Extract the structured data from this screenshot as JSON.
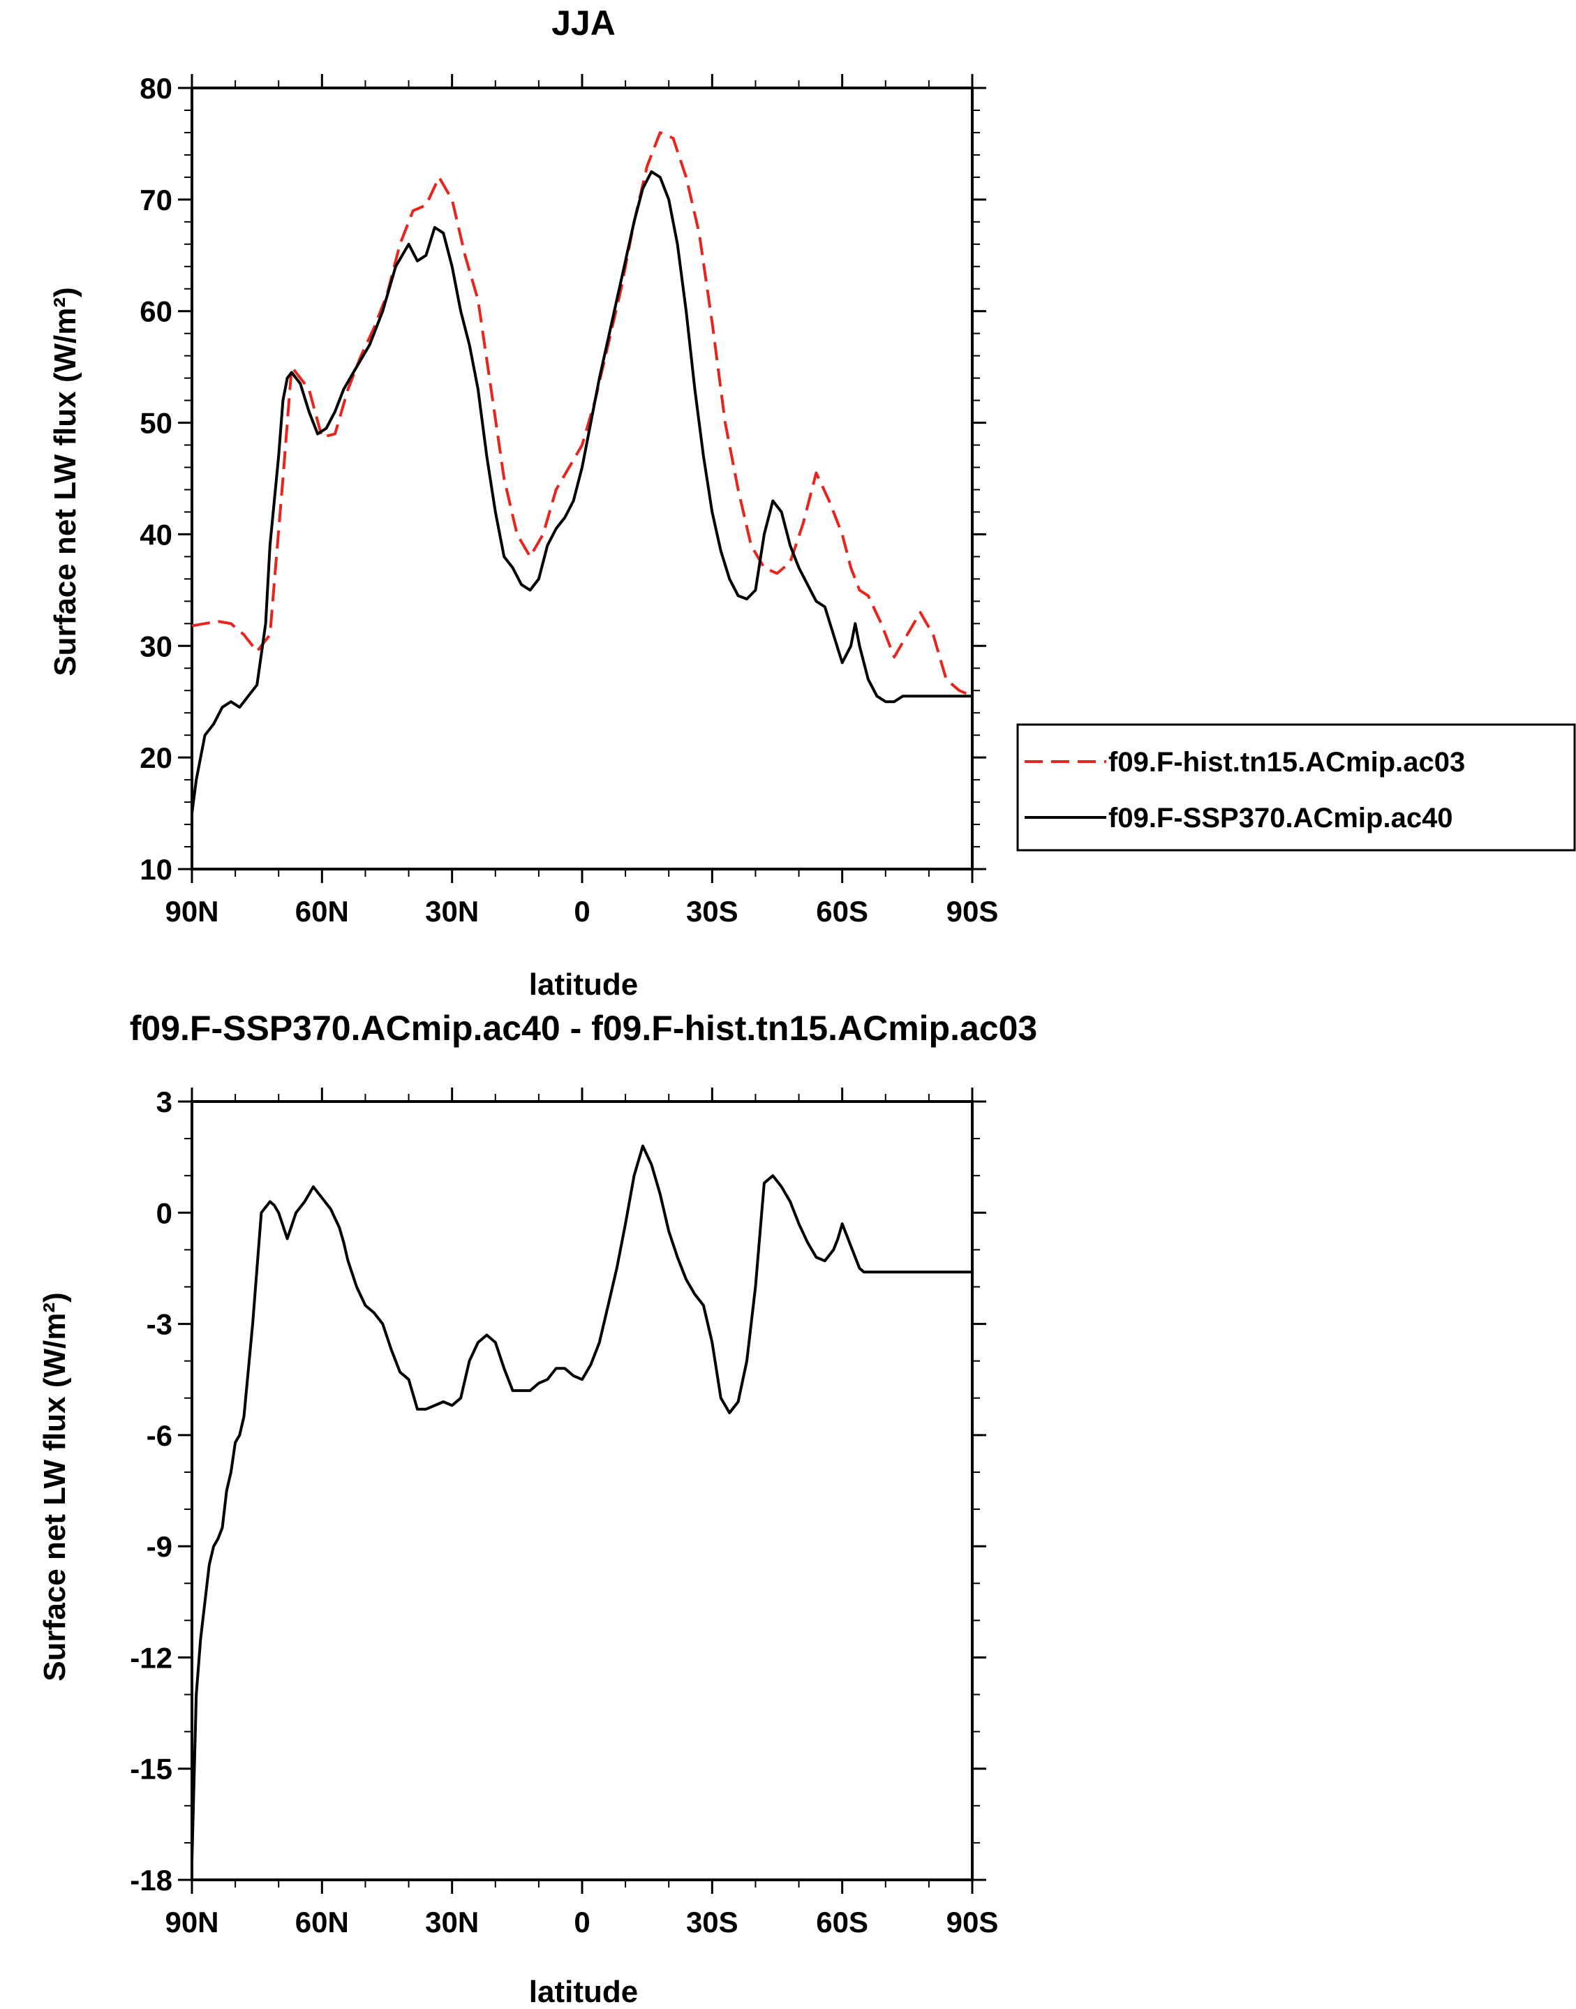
{
  "colors": {
    "series_hist": "#e8241c",
    "series_ssp": "#000000",
    "frame": "#000000"
  },
  "legend": {
    "entries": [
      {
        "label": "f09.F-hist.tn15.ACmip.ac03",
        "color": "#e8241c",
        "dash": true
      },
      {
        "label": "f09.F-SSP370.ACmip.ac40",
        "color": "#000000",
        "dash": false
      }
    ]
  },
  "chart_data": [
    {
      "type": "line",
      "title": "JJA",
      "xlabel": "latitude",
      "ylabel": "Surface net LW flux (W/m²)",
      "xlim": [
        90,
        -90
      ],
      "ylim": [
        10,
        80
      ],
      "xticks": [
        90,
        60,
        30,
        0,
        -30,
        -60,
        -90
      ],
      "xtick_labels": [
        "90N",
        "60N",
        "30N",
        "0",
        "30S",
        "60S",
        "90S"
      ],
      "yticks": [
        10,
        20,
        30,
        40,
        50,
        60,
        70,
        80
      ],
      "ytick_labels": [
        "10",
        "20",
        "30",
        "40",
        "50",
        "60",
        "70",
        "80"
      ],
      "legend": "right",
      "series": [
        {
          "name": "f09.F-hist.tn15.ACmip.ac03",
          "style": "dashed",
          "color": "#e8241c",
          "x": [
            90,
            87,
            84,
            81,
            78,
            75,
            72,
            69,
            67,
            65,
            63,
            60,
            57,
            54,
            51,
            48,
            45,
            42,
            39,
            36,
            33,
            30,
            27,
            24,
            21,
            18,
            15,
            12,
            9,
            6,
            3,
            0,
            -3,
            -6,
            -9,
            -12,
            -15,
            -18,
            -21,
            -24,
            -27,
            -30,
            -33,
            -36,
            -39,
            -42,
            -45,
            -48,
            -51,
            -54,
            -57,
            -60,
            -62,
            -63,
            -64,
            -66,
            -69,
            -72,
            -75,
            -78,
            -81,
            -84,
            -87,
            -90
          ],
          "y": [
            31.8,
            32,
            32.2,
            32,
            31,
            29.5,
            31,
            45,
            55,
            54,
            53,
            48.7,
            49,
            53,
            56,
            58.5,
            61.5,
            66,
            69,
            69.5,
            72,
            70,
            65,
            61,
            53,
            45,
            40,
            38,
            40,
            44,
            46,
            48,
            52,
            57,
            62,
            68,
            73,
            76,
            75.5,
            72,
            67,
            59,
            50,
            44,
            39,
            37,
            36.5,
            37.5,
            41,
            45.5,
            43,
            40,
            37,
            36,
            35,
            34.5,
            32,
            29,
            31,
            33,
            31,
            27,
            26,
            25.5
          ],
          "y_note": ""
        },
        {
          "name": "f09.F-SSP370.ACmip.ac40",
          "style": "solid",
          "color": "#000000",
          "x": [
            90,
            89,
            88,
            87,
            85,
            83,
            81,
            79,
            77,
            75,
            73,
            72,
            70,
            69,
            68,
            67,
            65,
            63,
            61,
            59,
            57,
            55,
            52,
            49,
            46,
            43,
            40,
            38,
            36,
            34,
            32,
            30,
            28,
            26,
            24,
            22,
            20,
            18,
            16,
            14,
            12,
            10,
            8,
            6,
            4,
            2,
            0,
            -2,
            -4,
            -6,
            -8,
            -10,
            -12,
            -14,
            -16,
            -18,
            -20,
            -22,
            -24,
            -26,
            -28,
            -30,
            -32,
            -34,
            -36,
            -38,
            -40,
            -42,
            -44,
            -46,
            -48,
            -50,
            -52,
            -54,
            -56,
            -58,
            -60,
            -62,
            -63,
            -64,
            -66,
            -68,
            -70,
            -72,
            -74,
            -76,
            -78,
            -80,
            -82,
            -84,
            -86,
            -88,
            -90
          ],
          "y": [
            15,
            18,
            20,
            22,
            23,
            24.5,
            25,
            24.5,
            25.5,
            26.5,
            32,
            39,
            47,
            52,
            54,
            54.5,
            53.5,
            51,
            49,
            49.5,
            51,
            53,
            55,
            57,
            60,
            64,
            66,
            64.5,
            65,
            67.5,
            67,
            64,
            60,
            57,
            53,
            47,
            42,
            38,
            37,
            35.5,
            35,
            36,
            39,
            40.5,
            41.5,
            43,
            46,
            50,
            54,
            57.5,
            61,
            64.5,
            68,
            71,
            72.5,
            72,
            70,
            66,
            60,
            53,
            47,
            42,
            38.5,
            36,
            34.5,
            34.2,
            35,
            40,
            43,
            42,
            39,
            37,
            35.5,
            34,
            33.5,
            31,
            28.5,
            30,
            32,
            30,
            27,
            25.5,
            25,
            25,
            25.5,
            25.5,
            25.5,
            25.5,
            25.5,
            25.5,
            25.5,
            25.5,
            25.5
          ],
          "y_note": ""
        }
      ]
    },
    {
      "type": "line",
      "title": "f09.F-SSP370.ACmip.ac40 - f09.F-hist.tn15.ACmip.ac03",
      "xlabel": "latitude",
      "ylabel": "Surface net LW flux (W/m²)",
      "xlim": [
        90,
        -90
      ],
      "ylim": [
        -18,
        3
      ],
      "xticks": [
        90,
        60,
        30,
        0,
        -30,
        -60,
        -90
      ],
      "xtick_labels": [
        "90N",
        "60N",
        "30N",
        "0",
        "30S",
        "60S",
        "90S"
      ],
      "yticks": [
        -18,
        -15,
        -12,
        -9,
        -6,
        -3,
        0,
        3
      ],
      "ytick_labels": [
        "-18",
        "-15",
        "-12",
        "-9",
        "-6",
        "-3",
        "0",
        "3"
      ],
      "legend": "none",
      "series": [
        {
          "color": "#000000",
          "style": "solid",
          "x": [
            90,
            89,
            88,
            87,
            86,
            85,
            84,
            83,
            82,
            81,
            80,
            79,
            78,
            76,
            74,
            72,
            71,
            70,
            68,
            66,
            64,
            62,
            60,
            58,
            56,
            55,
            54,
            52,
            50,
            48,
            46,
            44,
            42,
            40,
            38,
            36,
            34,
            32,
            30,
            28,
            26,
            24,
            22,
            20,
            18,
            16,
            14,
            12,
            10,
            8,
            6,
            4,
            2,
            0,
            -2,
            -4,
            -6,
            -8,
            -10,
            -12,
            -14,
            -16,
            -18,
            -20,
            -22,
            -24,
            -26,
            -28,
            -30,
            -32,
            -34,
            -36,
            -38,
            -40,
            -42,
            -44,
            -46,
            -48,
            -50,
            -52,
            -54,
            -56,
            -58,
            -59,
            -60,
            -61,
            -62,
            -63,
            -64,
            -65,
            -66,
            -67,
            -68,
            -70,
            -72,
            -74,
            -76,
            -78,
            -80,
            -82,
            -84,
            -86,
            -88,
            -90
          ],
          "y": [
            -17.5,
            -13,
            -11.5,
            -10.5,
            -9.5,
            -9,
            -8.8,
            -8.5,
            -7.5,
            -7,
            -6.2,
            -6,
            -5.5,
            -3,
            0,
            0.3,
            0.2,
            0,
            -0.7,
            0,
            0.3,
            0.7,
            0.4,
            0.1,
            -0.4,
            -0.8,
            -1.3,
            -2,
            -2.5,
            -2.7,
            -3,
            -3.7,
            -4.3,
            -4.5,
            -5.3,
            -5.3,
            -5.2,
            -5.1,
            -5.2,
            -5,
            -4,
            -3.5,
            -3.3,
            -3.5,
            -4.2,
            -4.8,
            -4.8,
            -4.8,
            -4.6,
            -4.5,
            -4.2,
            -4.2,
            -4.4,
            -4.5,
            -4.1,
            -3.5,
            -2.5,
            -1.5,
            -0.3,
            1,
            1.8,
            1.3,
            0.5,
            -0.5,
            -1.2,
            -1.8,
            -2.2,
            -2.5,
            -3.5,
            -5,
            -5.4,
            -5.1,
            -4,
            -2,
            0.8,
            1,
            0.7,
            0.3,
            -0.3,
            -0.8,
            -1.2,
            -1.3,
            -1,
            -0.7,
            -0.3,
            -0.6,
            -0.9,
            -1.2,
            -1.5,
            -1.6,
            -1.6,
            -1.6,
            -1.6,
            -1.6,
            -1.6,
            -1.6,
            -1.6,
            -1.6,
            -1.6,
            -1.6,
            -1.6,
            -1.6,
            -1.6,
            -1.6
          ]
        }
      ]
    }
  ]
}
